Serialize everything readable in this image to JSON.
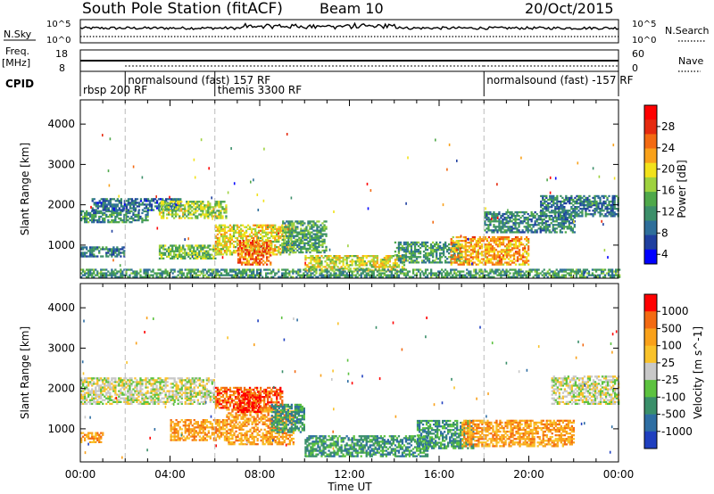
{
  "header": {
    "title": "South Pole Station (fitACF)",
    "beam": "Beam 10",
    "date": "20/Oct/2015"
  },
  "noise_panel": {
    "left_label": "N.Sky",
    "right_label": "N.Search",
    "tick_top": "10^5",
    "tick_bottom": "10^0"
  },
  "freq_panel": {
    "label_line1": "Freq.",
    "label_line2": "[MHz]",
    "left_ticks": [
      "18",
      "8"
    ],
    "right_ticks": [
      "60",
      "0"
    ],
    "right_label": "Nave"
  },
  "cpid": {
    "label": "CPID",
    "segments": [
      {
        "text": "rbsp 200 RF",
        "start_hour": 0,
        "row": 1
      },
      {
        "text": "normalsound (fast) 157 RF",
        "start_hour": 2,
        "row": 0
      },
      {
        "text": "themis 3300 RF",
        "start_hour": 6,
        "row": 1
      },
      {
        "text": "normalsound (fast) -157 RF",
        "start_hour": 18,
        "row": 0
      }
    ]
  },
  "xaxis": {
    "label": "Time UT",
    "ticks": [
      "00:00",
      "04:00",
      "08:00",
      "12:00",
      "16:00",
      "20:00",
      "00:00"
    ]
  },
  "chart_data": [
    {
      "type": "heatmap",
      "name": "power",
      "ylabel": "Slant Range [km]",
      "yticks": [
        1000,
        2000,
        3000,
        4000
      ],
      "ylim": [
        180,
        4600
      ],
      "xlim_hours": [
        0,
        24
      ],
      "colorbar": {
        "label": "Power [dB]",
        "ticks": [
          "28",
          "24",
          "20",
          "16",
          "12",
          "8",
          "4"
        ],
        "range": [
          0,
          30
        ],
        "colors": [
          "#0000ff",
          "#1f3f9f",
          "#2e6e9a",
          "#3c8f6a",
          "#4fa84a",
          "#9ed23f",
          "#f2e21b",
          "#f9a11a",
          "#f36a12",
          "#e52a0f",
          "#ff0000"
        ]
      },
      "bands": [
        {
          "h0": 0.0,
          "h1": 3.0,
          "r0": 1550,
          "r1": 1850,
          "v": 9
        },
        {
          "h0": 0.5,
          "h1": 4.5,
          "r0": 1850,
          "r1": 2150,
          "v": 6
        },
        {
          "h0": 3.5,
          "h1": 6.5,
          "r0": 1650,
          "r1": 2100,
          "v": 15
        },
        {
          "h0": 0.0,
          "h1": 2.0,
          "r0": 700,
          "r1": 950,
          "v": 7
        },
        {
          "h0": 3.5,
          "h1": 6.0,
          "r0": 650,
          "r1": 1000,
          "v": 13
        },
        {
          "h0": 6.0,
          "h1": 9.5,
          "r0": 750,
          "r1": 1500,
          "v": 18
        },
        {
          "h0": 7.0,
          "h1": 8.5,
          "r0": 500,
          "r1": 1100,
          "v": 24
        },
        {
          "h0": 9.0,
          "h1": 11.0,
          "r0": 800,
          "r1": 1600,
          "v": 11
        },
        {
          "h0": 10.0,
          "h1": 14.5,
          "r0": 350,
          "r1": 750,
          "v": 17
        },
        {
          "h0": 14.0,
          "h1": 17.0,
          "r0": 550,
          "r1": 1050,
          "v": 10
        },
        {
          "h0": 16.5,
          "h1": 20.0,
          "r0": 500,
          "r1": 1200,
          "v": 21
        },
        {
          "h0": 18.0,
          "h1": 22.0,
          "r0": 1300,
          "r1": 1800,
          "v": 8
        },
        {
          "h0": 20.5,
          "h1": 24.0,
          "r0": 1700,
          "r1": 2200,
          "v": 7
        },
        {
          "h0": 0.0,
          "h1": 24.0,
          "r0": 190,
          "r1": 400,
          "v": 10
        }
      ]
    },
    {
      "type": "heatmap",
      "name": "velocity",
      "ylabel": "Slant Range [km]",
      "yticks": [
        1000,
        2000,
        3000,
        4000
      ],
      "ylim": [
        180,
        4600
      ],
      "xlim_hours": [
        0,
        24
      ],
      "colorbar": {
        "label": "Velocity [m s^-1]",
        "ticks": [
          "1000",
          "500",
          "100",
          "25",
          "-25",
          "-100",
          "-500",
          "-1000"
        ],
        "colors": [
          "#1f3fbf",
          "#2e6ea3",
          "#3a8f6a",
          "#5cc23f",
          "#c8c8c8",
          "#f9c22a",
          "#f9a11a",
          "#f36a12",
          "#ff0000"
        ]
      },
      "bands": [
        {
          "h0": 0.0,
          "h1": 6.0,
          "r0": 1600,
          "r1": 2250,
          "v": 4
        },
        {
          "h0": 6.0,
          "h1": 9.0,
          "r0": 1500,
          "r1": 2000,
          "v": 7
        },
        {
          "h0": 0.0,
          "h1": 1.0,
          "r0": 650,
          "r1": 900,
          "v": 6
        },
        {
          "h0": 4.0,
          "h1": 6.5,
          "r0": 700,
          "r1": 1200,
          "v": 6
        },
        {
          "h0": 6.5,
          "h1": 9.5,
          "r0": 600,
          "r1": 1500,
          "v": 6
        },
        {
          "h0": 7.0,
          "h1": 8.0,
          "r0": 1400,
          "r1": 1900,
          "v": 8
        },
        {
          "h0": 8.5,
          "h1": 10.0,
          "r0": 900,
          "r1": 1600,
          "v": 2
        },
        {
          "h0": 10.0,
          "h1": 15.5,
          "r0": 300,
          "r1": 800,
          "v": 2
        },
        {
          "h0": 15.0,
          "h1": 17.5,
          "r0": 500,
          "r1": 1200,
          "v": 2
        },
        {
          "h0": 17.0,
          "h1": 22.0,
          "r0": 550,
          "r1": 1200,
          "v": 6
        },
        {
          "h0": 21.0,
          "h1": 24.0,
          "r0": 1600,
          "r1": 2300,
          "v": 4
        }
      ]
    }
  ]
}
